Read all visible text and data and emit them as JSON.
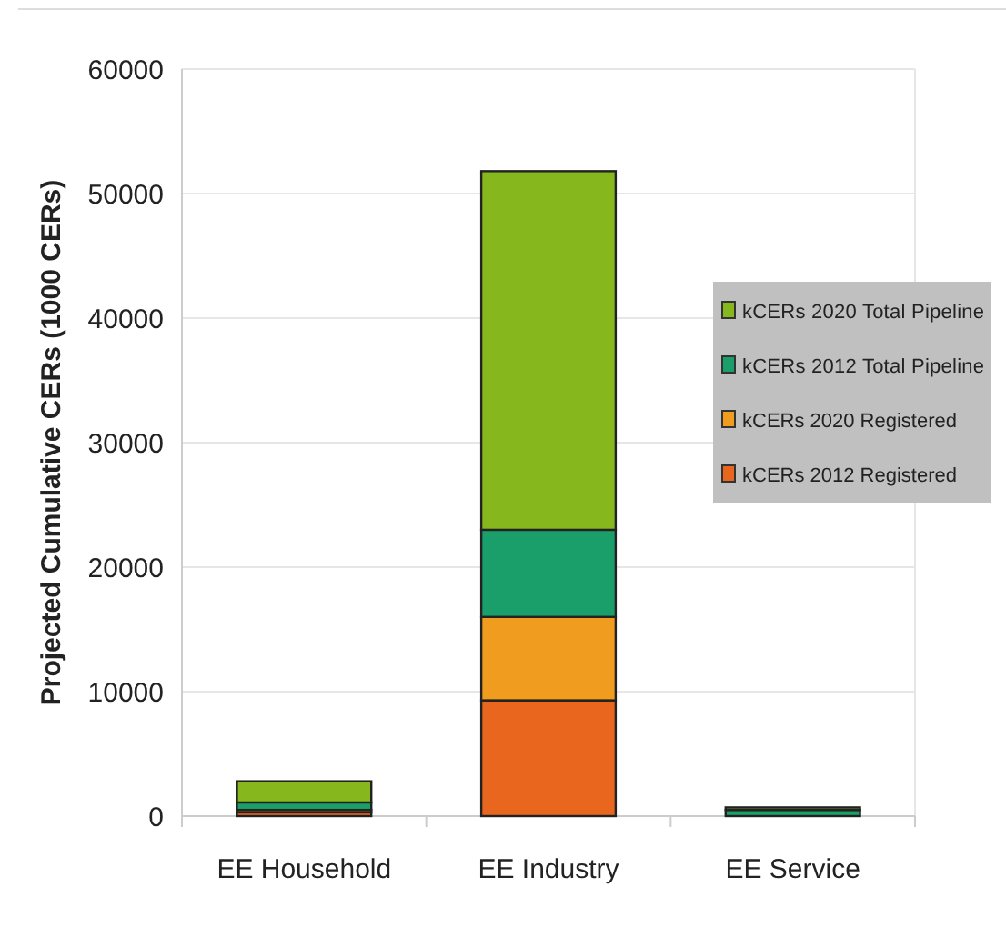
{
  "chart_data": {
    "type": "bar",
    "stacked": true,
    "ylabel": "Projected Cumulative CERs (1000 CERs)",
    "categories": [
      "EE Household",
      "EE Industry",
      "EE Service"
    ],
    "series": [
      {
        "name": "kCERs 2012 Registered",
        "color": "#e8661e",
        "values": [
          300,
          9300,
          null
        ]
      },
      {
        "name": "kCERs 2020 Registered",
        "color": "#f09c1e",
        "values": [
          200,
          6700,
          null
        ]
      },
      {
        "name": "kCERs 2012 Total Pipeline",
        "color": "#1a9e6a",
        "values": [
          600,
          7000,
          500
        ]
      },
      {
        "name": "kCERs 2020 Total Pipeline",
        "color": "#86b81e",
        "values": [
          1700,
          28800,
          200
        ]
      }
    ],
    "ylim": [
      0,
      60000
    ],
    "yticks": [
      0,
      10000,
      20000,
      30000,
      40000,
      50000,
      60000
    ],
    "grid": "y",
    "legend": "right"
  }
}
